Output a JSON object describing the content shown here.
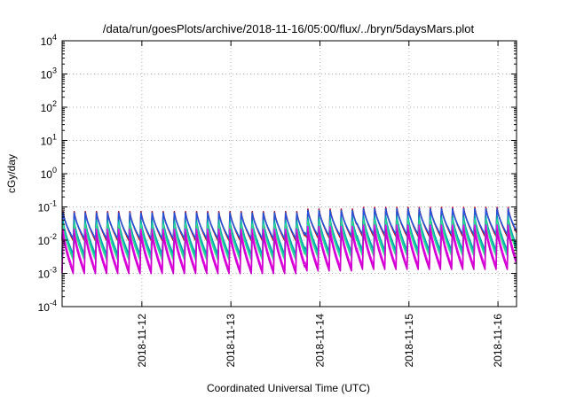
{
  "chart_data": {
    "type": "line",
    "title": "/data/run/goesPlots/archive/2018-11-16/05:00/flux/../bryn/5daysMars.plot",
    "xlabel": "Coordinated Universal Time (UTC)",
    "ylabel": "cGy/day",
    "yscale": "log",
    "ylim": [
      0.0001,
      10000
    ],
    "xlim": [
      "2018-11-11T02:30",
      "2018-11-16T05:00"
    ],
    "y_ticks": [
      {
        "base": "10",
        "exp": "-4",
        "value": 0.0001
      },
      {
        "base": "10",
        "exp": "-3",
        "value": 0.001
      },
      {
        "base": "10",
        "exp": "-2",
        "value": 0.01
      },
      {
        "base": "10",
        "exp": "-1",
        "value": 0.1
      },
      {
        "base": "10",
        "exp": "0",
        "value": 1
      },
      {
        "base": "10",
        "exp": "1",
        "value": 10
      },
      {
        "base": "10",
        "exp": "2",
        "value": 100
      },
      {
        "base": "10",
        "exp": "3",
        "value": 1000
      },
      {
        "base": "10",
        "exp": "4",
        "value": 10000
      }
    ],
    "x_ticks": [
      "2018-11-12",
      "2018-11-13",
      "2018-11-14",
      "2018-11-15",
      "2018-11-16"
    ],
    "grid": true,
    "pattern": {
      "cycles_per_day": 8,
      "segments": [
        {
          "start": "2018-11-11T02:30",
          "end": "2018-11-13T20:00",
          "peak": 0.075
        },
        {
          "start": "2018-11-13T20:00",
          "end": "2018-11-14T10:00",
          "peak": 0.09
        },
        {
          "start": "2018-11-14T10:00",
          "end": "2018-11-16T05:00",
          "peak": 0.1
        }
      ]
    },
    "series": [
      {
        "color": "#cc0000",
        "peak_factor": 1.0,
        "floor_factor": 0.13
      },
      {
        "color": "#2255dd",
        "peak_factor": 0.92,
        "floor_factor": 0.16
      },
      {
        "color": "#009999",
        "peak_factor": 0.55,
        "floor_factor": 0.09
      },
      {
        "color": "#00bbcc",
        "peak_factor": 0.48,
        "floor_factor": 0.085
      },
      {
        "color": "#33dd88",
        "peak_factor": 0.42,
        "floor_factor": 0.08
      },
      {
        "color": "#ee00ee",
        "peak_factor": 0.3,
        "floor_factor": 0.055
      },
      {
        "color": "#cc00cc",
        "peak_factor": 0.22,
        "floor_factor": 0.06
      }
    ]
  }
}
